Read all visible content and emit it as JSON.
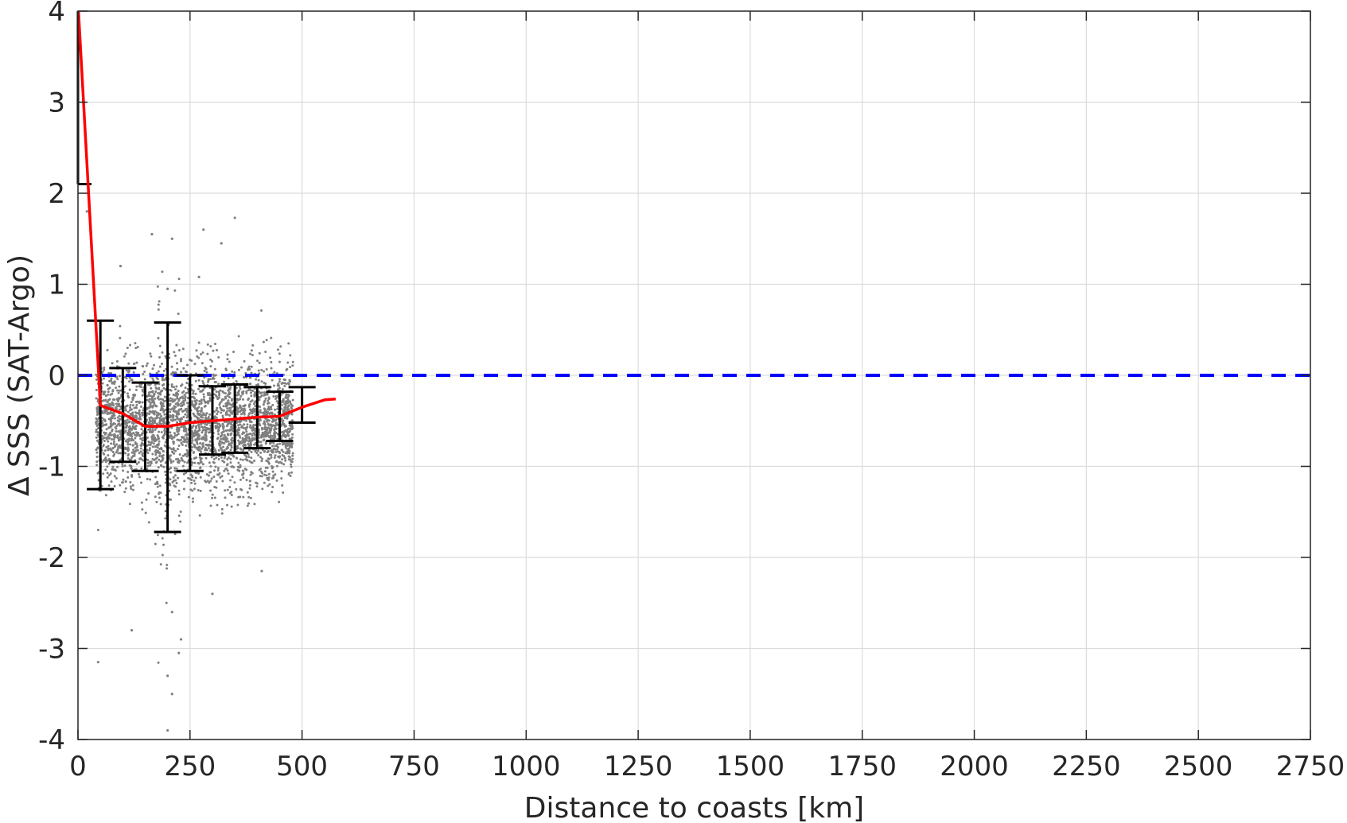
{
  "chart_data": {
    "type": "scatter",
    "xlabel": "Distance to coasts [km]",
    "ylabel": "Δ SSS (SAT-Argo)",
    "xlim": [
      0,
      2750
    ],
    "ylim": [
      -4,
      4
    ],
    "xticks": [
      0,
      250,
      500,
      750,
      1000,
      1250,
      1500,
      1750,
      2000,
      2250,
      2500,
      2750
    ],
    "yticks": [
      4,
      3,
      2,
      1,
      0,
      -1,
      -2,
      -3,
      -4
    ],
    "xtick_labels": [
      "0",
      "250",
      "500",
      "750",
      "1000",
      "1250",
      "1500",
      "1750",
      "2000",
      "2250",
      "2500",
      "2750"
    ],
    "ytick_labels": [
      "4",
      "3",
      "2",
      "1",
      "0",
      "-1",
      "-2",
      "-3",
      "-4"
    ],
    "grid": true,
    "scatter_cloud": {
      "color": "#808080",
      "x_range": [
        0,
        480
      ],
      "center_mean": -0.55,
      "spread_std": 0.33,
      "note_points": [
        {
          "x": 165,
          "y": 1.55
        },
        {
          "x": 210,
          "y": 1.5
        },
        {
          "x": 280,
          "y": 1.6
        },
        {
          "x": 320,
          "y": 1.45
        },
        {
          "x": 350,
          "y": 1.73
        },
        {
          "x": 95,
          "y": 1.2
        },
        {
          "x": 200,
          "y": 0.95
        },
        {
          "x": 270,
          "y": 1.08
        },
        {
          "x": 210,
          "y": -3.5
        },
        {
          "x": 200,
          "y": -3.9
        },
        {
          "x": 45,
          "y": -3.15
        },
        {
          "x": 200,
          "y": -3.3
        },
        {
          "x": 225,
          "y": -3.05
        },
        {
          "x": 120,
          "y": -2.8
        },
        {
          "x": 230,
          "y": -2.9
        },
        {
          "x": 210,
          "y": -2.6
        },
        {
          "x": 300,
          "y": -2.4
        },
        {
          "x": 410,
          "y": -2.15
        },
        {
          "x": 15,
          "y": 2.1
        },
        {
          "x": 20,
          "y": 1.8
        }
      ]
    },
    "error_bars": [
      {
        "x": 0,
        "low": 2.1,
        "high": 4.0
      },
      {
        "x": 50,
        "low": -1.25,
        "high": 0.6
      },
      {
        "x": 100,
        "low": -0.95,
        "high": 0.08
      },
      {
        "x": 150,
        "low": -1.05,
        "high": -0.08
      },
      {
        "x": 200,
        "low": -1.72,
        "high": 0.58
      },
      {
        "x": 250,
        "low": -1.05,
        "high": 0.0
      },
      {
        "x": 300,
        "low": -0.87,
        "high": -0.12
      },
      {
        "x": 350,
        "low": -0.85,
        "high": -0.1
      },
      {
        "x": 400,
        "low": -0.8,
        "high": -0.13
      },
      {
        "x": 450,
        "low": -0.72,
        "high": -0.18
      },
      {
        "x": 500,
        "low": -0.52,
        "high": -0.13
      }
    ],
    "error_bar_color": "#000000",
    "series": [
      {
        "color": "#ff0000",
        "x": [
          0,
          50,
          100,
          150,
          200,
          250,
          300,
          350,
          400,
          450,
          500,
          550,
          575
        ],
        "y": [
          4.1,
          -0.33,
          -0.42,
          -0.56,
          -0.56,
          -0.52,
          -0.5,
          -0.48,
          -0.46,
          -0.45,
          -0.35,
          -0.27,
          -0.26
        ]
      }
    ],
    "reference_line": {
      "y": 0,
      "color": "#0000ff",
      "style": "dashed"
    }
  }
}
